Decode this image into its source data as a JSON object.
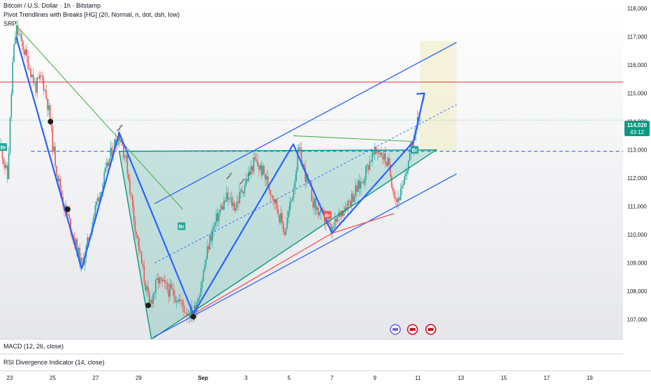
{
  "header": {
    "title": "Bitcoin / U.S. Dollar · 1h · Bitstamp",
    "indicator": "Pivot Trendlines with Breaks [HG] (20, Normal, n, dot, dsh, low)",
    "overlay": "SRP"
  },
  "price_tag": {
    "price": "114,020",
    "countdown": "43:12"
  },
  "panes": {
    "macd": "MACD (12, 26, close)",
    "rsi": "RSI Divergence Indicator (14, close)"
  },
  "labels": {
    "break": "Br"
  },
  "colors": {
    "up": "#26a69a",
    "down": "#ef5350",
    "resistance": "#f23645",
    "channel": "#2962ff",
    "triangle": "#089981",
    "pivot_green": "#4caf50"
  },
  "chart_data": {
    "type": "candlestick",
    "symbol": "BTCUSD",
    "interval": "1h",
    "y_ticks": [
      107000,
      108000,
      109000,
      110000,
      111000,
      112000,
      113000,
      114000,
      115000,
      116000,
      117000,
      118000
    ],
    "x_ticks": [
      {
        "label": "23",
        "day": 23
      },
      {
        "label": "25",
        "day": 25
      },
      {
        "label": "27",
        "day": 27
      },
      {
        "label": "29",
        "day": 29
      },
      {
        "label": "Sep",
        "day": 32
      },
      {
        "label": "3",
        "day": 34
      },
      {
        "label": "5",
        "day": 36
      },
      {
        "label": "7",
        "day": 38
      },
      {
        "label": "9",
        "day": 40
      },
      {
        "label": "11",
        "day": 42
      },
      {
        "label": "13",
        "day": 44
      },
      {
        "label": "15",
        "day": 46
      },
      {
        "label": "17",
        "day": 48
      },
      {
        "label": "19",
        "day": 50
      }
    ],
    "xlim_day": [
      22.55,
      51.55
    ],
    "ylim": [
      106300,
      118300
    ],
    "last_price": 114020,
    "price_path": [
      [
        22.6,
        113100
      ],
      [
        22.9,
        112000
      ],
      [
        23.15,
        116200
      ],
      [
        23.3,
        117300
      ],
      [
        23.55,
        116800
      ],
      [
        23.9,
        116000
      ],
      [
        24.2,
        115200
      ],
      [
        24.5,
        115600
      ],
      [
        24.8,
        114500
      ],
      [
        25.0,
        113200
      ],
      [
        25.2,
        112200
      ],
      [
        25.5,
        111100
      ],
      [
        25.8,
        110400
      ],
      [
        26.2,
        109300
      ],
      [
        26.35,
        108900
      ],
      [
        26.6,
        109600
      ],
      [
        27.0,
        111000
      ],
      [
        27.4,
        112000
      ],
      [
        27.8,
        113100
      ],
      [
        28.1,
        113600
      ],
      [
        28.45,
        112500
      ],
      [
        28.8,
        110500
      ],
      [
        29.2,
        108700
      ],
      [
        29.5,
        107500
      ],
      [
        29.9,
        108400
      ],
      [
        30.3,
        108100
      ],
      [
        30.8,
        107800
      ],
      [
        31.2,
        107300
      ],
      [
        31.55,
        107200
      ],
      [
        31.9,
        108200
      ],
      [
        32.3,
        109800
      ],
      [
        32.7,
        110700
      ],
      [
        33.1,
        111300
      ],
      [
        33.5,
        111000
      ],
      [
        34.0,
        111900
      ],
      [
        34.4,
        112600
      ],
      [
        34.8,
        112200
      ],
      [
        35.3,
        111300
      ],
      [
        35.8,
        110100
      ],
      [
        36.15,
        111400
      ],
      [
        36.45,
        113000
      ],
      [
        36.8,
        112000
      ],
      [
        37.2,
        111000
      ],
      [
        37.6,
        110600
      ],
      [
        38.0,
        110100
      ],
      [
        38.4,
        110800
      ],
      [
        38.9,
        111300
      ],
      [
        39.4,
        111900
      ],
      [
        39.8,
        112700
      ],
      [
        40.2,
        113000
      ],
      [
        40.6,
        112500
      ],
      [
        41.0,
        111200
      ],
      [
        41.3,
        111600
      ],
      [
        41.6,
        112800
      ],
      [
        41.8,
        113400
      ],
      [
        42.0,
        114400
      ],
      [
        42.1,
        114020
      ]
    ],
    "drawings": {
      "resistance": 115400,
      "dotted_support": 114050,
      "dashed_level": 112950,
      "triangle": [
        [
          29.6,
          106300
        ],
        [
          42.85,
          113000
        ],
        [
          28.1,
          112950
        ]
      ],
      "target_box": [
        [
          42.1,
          116850
        ],
        [
          43.8,
          112950
        ]
      ],
      "channel_upper": [
        [
          29.75,
          111100
        ],
        [
          43.8,
          116800
        ]
      ],
      "channel_mid": [
        [
          29.75,
          109000
        ],
        [
          43.8,
          114600
        ]
      ],
      "zigzag": [
        [
          23.3,
          117000
        ],
        [
          26.35,
          108800
        ],
        [
          28.1,
          113600
        ],
        [
          31.55,
          107200
        ],
        [
          36.2,
          113200
        ],
        [
          38.0,
          110050
        ],
        [
          41.8,
          113300
        ],
        [
          42.3,
          115000
        ]
      ],
      "red_lines": [
        [
          [
            31.55,
            107200
          ],
          [
            38.0,
            110050
          ]
        ],
        [
          [
            38.0,
            110050
          ],
          [
            40.9,
            110750
          ]
        ]
      ],
      "green_trend": [
        [
          23.3,
          117400
        ],
        [
          31.05,
          110900
        ]
      ],
      "green_pivot": [
        [
          36.2,
          113500
        ],
        [
          41.7,
          113300
        ]
      ],
      "bombs": [
        [
          24.9,
          114000
        ],
        [
          25.7,
          110900
        ],
        [
          29.45,
          107500
        ],
        [
          31.55,
          107100
        ]
      ],
      "hammers": [
        [
          28.1,
          113750
        ],
        [
          33.2,
          112050
        ],
        [
          33.8,
          111850
        ],
        [
          34.2,
          112150
        ]
      ],
      "break_labels": [
        {
          "day": 22.7,
          "price": 113100,
          "color": "up"
        },
        {
          "day": 31.0,
          "price": 110300,
          "color": "up"
        },
        {
          "day": 37.8,
          "price": 110700,
          "color": "down"
        },
        {
          "day": 41.85,
          "price": 113000,
          "color": "up"
        }
      ],
      "event_icons": [
        [
          40.95,
          106650,
          "#6c5ce7"
        ],
        [
          41.75,
          106650,
          "#d0021b"
        ],
        [
          42.6,
          106650,
          "#d0021b"
        ]
      ]
    }
  }
}
